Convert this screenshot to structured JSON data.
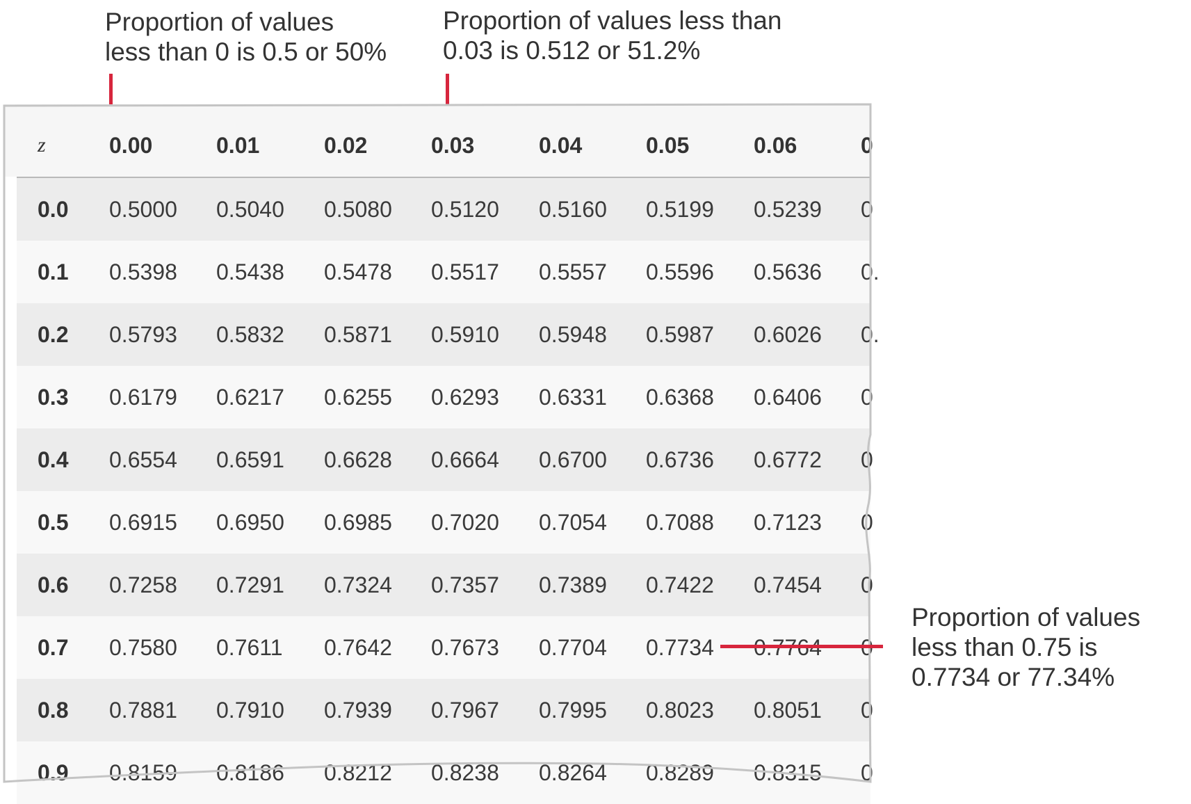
{
  "annotations": {
    "z000": "Proportion of values\nless than 0 is 0.5 or 50%",
    "z003": "Proportion of values less than\n0.03 is 0.512 or 51.2%",
    "z075": "Proportion of values\nless than 0.75 is\n0.7734 or 77.34%"
  },
  "colors": {
    "pointer": "#d7263d",
    "shaded_row": "#ececec",
    "plain_row": "#f8f8f8"
  },
  "table": {
    "corner_label": "z",
    "columns": [
      "0.00",
      "0.01",
      "0.02",
      "0.03",
      "0.04",
      "0.05",
      "0.06",
      "0"
    ],
    "rows": [
      {
        "z": "0.0",
        "values": [
          "0.5000",
          "0.5040",
          "0.5080",
          "0.5120",
          "0.5160",
          "0.5199",
          "0.5239",
          "0"
        ]
      },
      {
        "z": "0.1",
        "values": [
          "0.5398",
          "0.5438",
          "0.5478",
          "0.5517",
          "0.5557",
          "0.5596",
          "0.5636",
          "0."
        ]
      },
      {
        "z": "0.2",
        "values": [
          "0.5793",
          "0.5832",
          "0.5871",
          "0.5910",
          "0.5948",
          "0.5987",
          "0.6026",
          "0."
        ]
      },
      {
        "z": "0.3",
        "values": [
          "0.6179",
          "0.6217",
          "0.6255",
          "0.6293",
          "0.6331",
          "0.6368",
          "0.6406",
          "0"
        ]
      },
      {
        "z": "0.4",
        "values": [
          "0.6554",
          "0.6591",
          "0.6628",
          "0.6664",
          "0.6700",
          "0.6736",
          "0.6772",
          "0"
        ]
      },
      {
        "z": "0.5",
        "values": [
          "0.6915",
          "0.6950",
          "0.6985",
          "0.7020",
          "0.7054",
          "0.7088",
          "0.7123",
          "0"
        ]
      },
      {
        "z": "0.6",
        "values": [
          "0.7258",
          "0.7291",
          "0.7324",
          "0.7357",
          "0.7389",
          "0.7422",
          "0.7454",
          "0"
        ]
      },
      {
        "z": "0.7",
        "values": [
          "0.7580",
          "0.7611",
          "0.7642",
          "0.7673",
          "0.7704",
          "0.7734",
          "0.7764",
          "0"
        ]
      },
      {
        "z": "0.8",
        "values": [
          "0.7881",
          "0.7910",
          "0.7939",
          "0.7967",
          "0.7995",
          "0.8023",
          "0.8051",
          "0"
        ]
      },
      {
        "z": "0.9",
        "values": [
          "0.8159",
          "0.8186",
          "0.8212",
          "0.8238",
          "0.8264",
          "0.8289",
          "0.8315",
          "0"
        ]
      }
    ]
  }
}
